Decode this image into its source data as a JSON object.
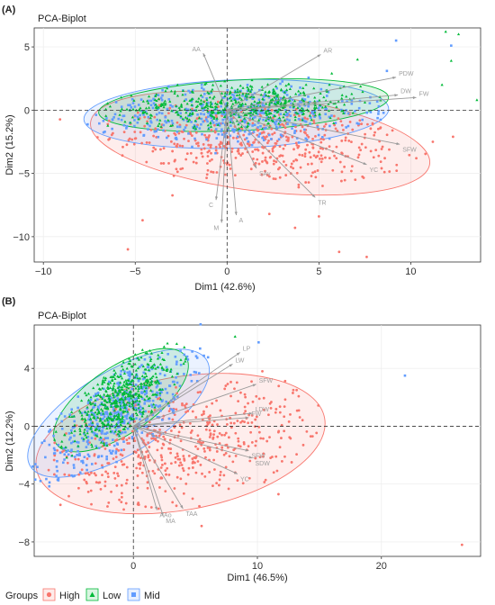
{
  "colors": {
    "high": "#F8766D",
    "low": "#00BA38",
    "mid": "#619CFF",
    "arrow": "#9a9a9a",
    "grid": "#ebebeb",
    "axis": "#333333"
  },
  "legend": {
    "title": "Groups",
    "items": [
      {
        "label": "High",
        "shape": "circle",
        "color": "#F8766D"
      },
      {
        "label": "Low",
        "shape": "triangle",
        "color": "#00BA38"
      },
      {
        "label": "Mid",
        "shape": "square",
        "color": "#619CFF"
      }
    ]
  },
  "chart_data": [
    {
      "type": "scatter",
      "panel_label": "(A)",
      "title": "PCA-Biplot",
      "xlabel": "Dim1 (42.6%)",
      "ylabel": "Dim2 (15.2%)",
      "xlim": [
        -10.5,
        13.8
      ],
      "ylim": [
        -12,
        6.5
      ],
      "xticks": [
        -10,
        -5,
        0,
        5,
        10
      ],
      "yticks": [
        -10,
        -5,
        0,
        5
      ],
      "ellipses": [
        {
          "group": "High",
          "cx": 1.8,
          "cy": -2.6,
          "rx": 9.3,
          "ry": 3.8,
          "angle": -7
        },
        {
          "group": "Mid",
          "cx": 0.5,
          "cy": -0.3,
          "rx": 8.3,
          "ry": 2.7,
          "angle": 2
        },
        {
          "group": "Low",
          "cx": 0.9,
          "cy": 0.4,
          "rx": 7.9,
          "ry": 2.0,
          "angle": 3
        }
      ],
      "variables": [
        {
          "name": "AA",
          "x": -1.3,
          "y": 4.5
        },
        {
          "name": "AR",
          "x": 5.1,
          "y": 4.4
        },
        {
          "name": "PDW",
          "x": 9.2,
          "y": 2.6
        },
        {
          "name": "DW",
          "x": 9.3,
          "y": 1.2
        },
        {
          "name": "FW",
          "x": 10.3,
          "y": 1.0
        },
        {
          "name": "SFW",
          "x": 9.4,
          "y": -2.7
        },
        {
          "name": "YC",
          "x": 7.6,
          "y": -4.3
        },
        {
          "name": "SAv",
          "x": 1.6,
          "y": -4.6
        },
        {
          "name": "TR",
          "x": 4.8,
          "y": -6.9
        },
        {
          "name": "C",
          "x": -0.6,
          "y": -7.1
        },
        {
          "name": "A",
          "x": 0.5,
          "y": -8.3
        },
        {
          "name": "M",
          "x": -0.3,
          "y": -8.9
        }
      ],
      "points": [
        {
          "group": "Low",
          "x": 11.9,
          "y": 6.2
        },
        {
          "group": "Low",
          "x": 12.6,
          "y": 6.0
        },
        {
          "group": "Mid",
          "x": 9.2,
          "y": 5.5
        },
        {
          "group": "Mid",
          "x": 12.2,
          "y": 5.1
        },
        {
          "group": "Low",
          "x": 12.2,
          "y": 3.9
        },
        {
          "group": "Low",
          "x": 11.7,
          "y": 2.0
        },
        {
          "group": "Low",
          "x": 13.6,
          "y": 0.8
        },
        {
          "group": "High",
          "x": 12.3,
          "y": -2.1
        },
        {
          "group": "High",
          "x": 11.2,
          "y": -2.5
        },
        {
          "group": "High",
          "x": 10.3,
          "y": -3.8
        },
        {
          "group": "High",
          "x": 6.1,
          "y": -11.2
        },
        {
          "group": "High",
          "x": 7.6,
          "y": -11.6
        },
        {
          "group": "High",
          "x": 3.7,
          "y": -9.3
        },
        {
          "group": "High",
          "x": -5.4,
          "y": -11.0
        },
        {
          "group": "Mid",
          "x": 8.7,
          "y": 3.1
        },
        {
          "group": "Low",
          "x": 7.1,
          "y": 4.0
        },
        {
          "group": "Low",
          "x": 5.7,
          "y": 2.9
        },
        {
          "group": "High",
          "x": 5.0,
          "y": -8.4
        },
        {
          "group": "High",
          "x": -4.6,
          "y": -8.7
        },
        {
          "group": "High",
          "x": 2.3,
          "y": -8.2
        }
      ],
      "cloud_points_per_group": 500
    },
    {
      "type": "scatter",
      "panel_label": "(B)",
      "title": "PCA-Biplot",
      "xlabel": "Dim1 (46.5%)",
      "ylabel": "Dim2 (12.2%)",
      "xlim": [
        -8,
        28
      ],
      "ylim": [
        -9,
        7
      ],
      "xticks": [
        0,
        10,
        20
      ],
      "yticks": [
        -8,
        -4,
        0,
        4
      ],
      "ellipses": [
        {
          "group": "High",
          "cx": 3.8,
          "cy": -1.2,
          "rx": 11.8,
          "ry": 4.6,
          "angle": 10
        },
        {
          "group": "Mid",
          "cx": -1.2,
          "cy": 0.9,
          "rx": 8.3,
          "ry": 2.9,
          "angle": 31
        },
        {
          "group": "Low",
          "cx": -1.0,
          "cy": 1.8,
          "rx": 6.3,
          "ry": 2.3,
          "angle": 34
        }
      ],
      "variables": [
        {
          "name": "LP",
          "x": 8.6,
          "y": 5.1
        },
        {
          "name": "LW",
          "x": 8.0,
          "y": 4.3
        },
        {
          "name": "SFW",
          "x": 9.9,
          "y": 2.9
        },
        {
          "name": "LDW",
          "x": 9.6,
          "y": 0.9
        },
        {
          "name": "FW",
          "x": 9.3,
          "y": 0.6
        },
        {
          "name": "SFW",
          "x": 9.3,
          "y": -1.7
        },
        {
          "name": "SDW",
          "x": 9.6,
          "y": -2.2
        },
        {
          "name": "YC",
          "x": 8.4,
          "y": -3.3
        },
        {
          "name": "MA",
          "x": 2.4,
          "y": -6.2
        },
        {
          "name": "TAA",
          "x": 4.0,
          "y": -5.7
        },
        {
          "name": "AAo",
          "x": 1.9,
          "y": -5.8
        }
      ],
      "points": [
        {
          "group": "Low",
          "x": 8.2,
          "y": 6.2
        },
        {
          "group": "Mid",
          "x": 10.1,
          "y": 5.8
        },
        {
          "group": "Mid",
          "x": 21.9,
          "y": 3.5
        },
        {
          "group": "High",
          "x": 26.5,
          "y": -8.2
        },
        {
          "group": "High",
          "x": 14.3,
          "y": -0.7
        },
        {
          "group": "High",
          "x": 11.7,
          "y": -4.7
        },
        {
          "group": "High",
          "x": 5.5,
          "y": -6.9
        },
        {
          "group": "High",
          "x": 13.7,
          "y": -1.3
        },
        {
          "group": "High",
          "x": 12.9,
          "y": 2.5
        },
        {
          "group": "High",
          "x": 10.4,
          "y": 3.8
        }
      ],
      "cloud_points_per_group": 500
    }
  ]
}
